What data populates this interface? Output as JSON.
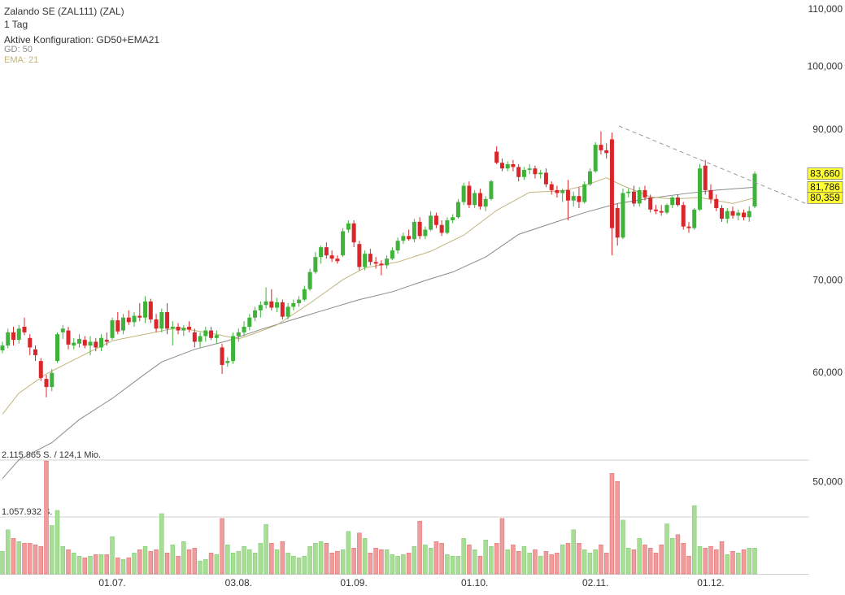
{
  "chart_data": {
    "type": "candlestick",
    "title": "Zalando SE (ZAL111) (ZAL)",
    "subtitle": "1 Tag",
    "config": "Aktive Konfiguration: GD50+EMA21",
    "categories": [
      null,
      null,
      null,
      null,
      null,
      null,
      null,
      null,
      null,
      null,
      null,
      null,
      null,
      null,
      null,
      null,
      null,
      null,
      null,
      null,
      "01.07.",
      null,
      null,
      null,
      null,
      null,
      null,
      null,
      null,
      null,
      null,
      null,
      null,
      null,
      null,
      null,
      null,
      null,
      null,
      null,
      null,
      null,
      null,
      "03.08.",
      null,
      null,
      null,
      null,
      null,
      null,
      null,
      null,
      null,
      null,
      null,
      null,
      null,
      null,
      null,
      null,
      null,
      null,
      null,
      null,
      "01.09.",
      null,
      null,
      null,
      null,
      null,
      null,
      null,
      null,
      null,
      null,
      null,
      null,
      null,
      null,
      null,
      null,
      null,
      null,
      null,
      null,
      null,
      "01.10.",
      null,
      null,
      null,
      null,
      null,
      null,
      null,
      null,
      null,
      null,
      null,
      null,
      null,
      null,
      null,
      null,
      null,
      null,
      null,
      null,
      null,
      "02.11.",
      null,
      null,
      null,
      null,
      null,
      null,
      null,
      null,
      null,
      null,
      null,
      null,
      null,
      null,
      null,
      null,
      null,
      null,
      null,
      null,
      "01.12.",
      null,
      null,
      null,
      null,
      null,
      null,
      null,
      null
    ],
    "open": [
      62.3,
      62.8,
      64.2,
      63.4,
      64.8,
      63.6,
      62.4,
      61.2,
      59.4,
      58.6,
      61.2,
      64.2,
      64.4,
      62.8,
      63.0,
      63.4,
      62.8,
      63.2,
      62.6,
      63.4,
      63.6,
      65.5,
      64.4,
      65.8,
      65.3,
      66.0,
      65.8,
      67.6,
      65.6,
      64.6,
      66.4,
      64.6,
      64.8,
      64.4,
      64.8,
      64.2,
      63.2,
      63.8,
      64.4,
      63.6,
      62.6,
      61.0,
      61.2,
      63.8,
      64.2,
      64.8,
      65.8,
      66.6,
      67.2,
      67.6,
      66.9,
      67.5,
      65.9,
      67.0,
      67.4,
      67.8,
      69.0,
      71.0,
      72.8,
      74.0,
      73.0,
      72.6,
      73.0,
      76.2,
      77.0,
      74.4,
      71.6,
      73.2,
      72.2,
      72.0,
      71.8,
      72.6,
      73.6,
      74.8,
      75.4,
      75.0,
      77.2,
      75.4,
      76.2,
      78.0,
      76.8,
      75.8,
      77.4,
      77.8,
      79.8,
      82.0,
      79.4,
      81.0,
      79.2,
      80.2,
      86.8,
      85.2,
      84.4,
      85.0,
      84.6,
      83.2,
      84.2,
      84.4,
      83.6,
      83.8,
      82.2,
      81.4,
      81.0,
      81.4,
      80.0,
      80.6,
      79.8,
      82.2,
      84.0,
      87.8,
      87.0,
      88.6,
      79.0,
      75.2,
      81.0,
      81.2,
      79.6,
      81.4,
      80.4,
      78.8,
      78.6,
      78.4,
      79.4,
      80.4,
      79.4,
      76.6,
      76.4,
      78.8,
      84.8,
      81.4,
      80.2,
      79.0,
      77.6,
      78.6,
      78.0,
      78.4,
      77.8,
      79.2
    ],
    "high": [
      63.2,
      64.6,
      64.8,
      65.0,
      65.8,
      64.0,
      62.8,
      61.5,
      59.8,
      60.4,
      64.2,
      65.0,
      64.8,
      63.6,
      64.0,
      63.8,
      63.8,
      63.6,
      64.0,
      64.2,
      65.8,
      66.4,
      66.2,
      66.6,
      66.4,
      67.4,
      68.2,
      67.9,
      66.2,
      66.8,
      67.4,
      65.4,
      65.2,
      65.0,
      65.4,
      64.6,
      64.2,
      64.8,
      64.8,
      64.4,
      63.0,
      61.6,
      64.2,
      64.6,
      65.4,
      66.2,
      67.0,
      67.6,
      69.2,
      69.0,
      68.0,
      67.8,
      67.4,
      67.8,
      68.2,
      69.4,
      71.4,
      73.4,
      74.2,
      74.6,
      73.6,
      73.0,
      76.4,
      77.4,
      77.4,
      74.8,
      73.6,
      73.8,
      72.8,
      72.4,
      73.0,
      74.0,
      75.2,
      75.8,
      76.2,
      77.6,
      77.8,
      76.6,
      78.6,
      78.4,
      77.4,
      77.8,
      78.2,
      80.2,
      82.4,
      82.6,
      81.4,
      81.6,
      80.6,
      82.8,
      87.6,
      85.8,
      85.4,
      85.6,
      85.0,
      84.6,
      85.0,
      84.8,
      84.2,
      84.4,
      82.6,
      82.0,
      81.6,
      82.8,
      81.2,
      81.8,
      82.6,
      84.4,
      88.2,
      89.8,
      88.0,
      89.6,
      79.6,
      81.6,
      81.6,
      82.0,
      81.8,
      82.0,
      80.8,
      79.4,
      79.4,
      79.6,
      80.6,
      80.8,
      79.8,
      77.2,
      79.0,
      85.0,
      85.6,
      82.2,
      80.8,
      79.4,
      79.0,
      79.2,
      78.8,
      78.8,
      79.2,
      84.0
    ],
    "low": [
      62.0,
      62.5,
      62.8,
      63.0,
      63.9,
      61.8,
      61.2,
      59.2,
      57.6,
      58.2,
      61.0,
      63.5,
      62.4,
      62.4,
      62.6,
      62.5,
      61.8,
      62.2,
      62.2,
      62.8,
      63.4,
      64.0,
      64.0,
      65.0,
      64.8,
      65.4,
      65.2,
      65.2,
      64.2,
      64.2,
      64.0,
      62.8,
      64.0,
      63.8,
      64.2,
      62.6,
      62.6,
      63.2,
      63.4,
      63.0,
      59.9,
      60.6,
      60.9,
      63.2,
      63.8,
      64.4,
      65.4,
      65.8,
      66.8,
      66.6,
      66.4,
      65.6,
      65.6,
      66.6,
      67.0,
      67.6,
      68.8,
      70.8,
      72.0,
      72.6,
      72.2,
      72.0,
      72.8,
      75.8,
      74.0,
      71.2,
      71.2,
      71.8,
      71.4,
      70.6,
      71.4,
      72.4,
      73.2,
      74.4,
      74.8,
      74.6,
      75.0,
      75.0,
      76.0,
      76.4,
      75.4,
      75.6,
      77.0,
      77.6,
      79.4,
      79.0,
      79.0,
      78.8,
      78.6,
      80.0,
      85.0,
      84.0,
      84.0,
      84.0,
      82.6,
      82.8,
      83.6,
      83.0,
      83.0,
      81.8,
      80.8,
      80.4,
      79.8,
      77.4,
      79.2,
      79.0,
      79.6,
      82.0,
      83.8,
      86.4,
      85.8,
      73.0,
      74.2,
      75.0,
      80.4,
      79.2,
      79.2,
      80.0,
      78.4,
      78.2,
      78.0,
      78.2,
      79.0,
      79.2,
      76.2,
      75.8,
      76.2,
      78.6,
      80.8,
      79.6,
      78.6,
      77.2,
      77.0,
      77.6,
      77.4,
      77.4,
      77.2,
      79.0
    ],
    "close": [
      62.8,
      64.2,
      63.4,
      64.6,
      64.2,
      62.6,
      61.8,
      59.5,
      58.6,
      60.0,
      64.0,
      64.6,
      62.9,
      63.1,
      63.5,
      62.8,
      63.2,
      62.6,
      63.6,
      63.2,
      65.5,
      64.3,
      65.8,
      65.3,
      66.0,
      65.8,
      67.6,
      65.6,
      64.6,
      66.4,
      64.6,
      64.8,
      64.4,
      64.7,
      64.5,
      63.2,
      63.8,
      64.4,
      63.6,
      63.9,
      60.8,
      61.2,
      63.8,
      64.2,
      64.8,
      65.8,
      66.6,
      67.2,
      67.6,
      66.9,
      67.5,
      65.9,
      67.0,
      67.4,
      67.8,
      69.0,
      71.0,
      72.8,
      74.0,
      73.0,
      72.6,
      72.3,
      76.0,
      77.0,
      74.6,
      71.6,
      73.2,
      72.2,
      72.0,
      71.8,
      72.6,
      73.6,
      74.8,
      75.4,
      75.0,
      77.2,
      75.4,
      76.2,
      78.0,
      76.8,
      75.8,
      77.4,
      77.8,
      79.8,
      82.0,
      79.4,
      81.0,
      79.2,
      80.2,
      82.6,
      85.2,
      84.4,
      85.0,
      84.6,
      83.2,
      84.2,
      84.4,
      83.6,
      83.8,
      82.2,
      81.4,
      81.0,
      81.4,
      80.0,
      80.6,
      79.8,
      82.2,
      84.0,
      87.8,
      87.0,
      86.6,
      76.4,
      75.2,
      81.0,
      81.2,
      79.6,
      81.4,
      80.4,
      78.8,
      78.6,
      78.4,
      79.4,
      80.4,
      79.4,
      76.6,
      76.4,
      78.8,
      84.4,
      81.4,
      80.2,
      79.0,
      77.6,
      78.6,
      78.0,
      78.4,
      77.8,
      78.6,
      83.66
    ],
    "last_label": "83,660",
    "up_color": "#3fb23a",
    "down_color": "#d8262a",
    "volume": [
      420000,
      820000,
      660000,
      600000,
      570000,
      570000,
      540000,
      510000,
      2100000,
      900000,
      1180000,
      510000,
      450000,
      390000,
      330000,
      300000,
      330000,
      360000,
      360000,
      360000,
      690000,
      300000,
      270000,
      300000,
      390000,
      450000,
      510000,
      420000,
      450000,
      1120000,
      390000,
      540000,
      330000,
      600000,
      450000,
      480000,
      240000,
      270000,
      390000,
      360000,
      1030000,
      540000,
      390000,
      420000,
      510000,
      450000,
      390000,
      570000,
      920000,
      570000,
      450000,
      600000,
      390000,
      330000,
      300000,
      330000,
      510000,
      570000,
      600000,
      570000,
      390000,
      420000,
      450000,
      790000,
      480000,
      760000,
      660000,
      390000,
      480000,
      450000,
      450000,
      360000,
      330000,
      360000,
      390000,
      510000,
      980000,
      540000,
      480000,
      600000,
      570000,
      360000,
      330000,
      330000,
      660000,
      540000,
      450000,
      330000,
      630000,
      510000,
      570000,
      1030000,
      450000,
      540000,
      420000,
      510000,
      390000,
      450000,
      330000,
      420000,
      360000,
      390000,
      540000,
      570000,
      820000,
      570000,
      450000,
      390000,
      450000,
      540000,
      390000,
      1870000,
      1720000,
      1000000,
      480000,
      450000,
      660000,
      540000,
      480000,
      390000,
      540000,
      930000,
      660000,
      730000,
      570000,
      330000,
      1270000,
      510000,
      480000,
      510000,
      450000,
      600000,
      360000,
      420000,
      390000,
      450000,
      480000,
      480000
    ],
    "volume_up_color": "#a9dd95",
    "volume_down_color": "#ef9c9c",
    "volume_lim": [
      0,
      2115865
    ],
    "volume_ticks": [
      {
        "value": 2115865,
        "label": "2.115.865 S. / 124,1 Mio."
      },
      {
        "value": 1057932,
        "label": "1.057.932 S."
      }
    ],
    "log_scale": true,
    "ylim": [
      42.9,
      111.8
    ],
    "yticks": [
      {
        "value": 50,
        "label": "50,000"
      },
      {
        "value": 60,
        "label": "60,000"
      },
      {
        "value": 70,
        "label": "70,000"
      },
      {
        "value": 90,
        "label": "90,000"
      },
      {
        "value": 100,
        "label": "100,000"
      },
      {
        "value": 110,
        "label": "110,000"
      }
    ],
    "series": [
      {
        "name": "GD: 50",
        "color": "#8a8a8a",
        "x": [
          0,
          3,
          9,
          14,
          20,
          26,
          29,
          35,
          41,
          47,
          53,
          59,
          65,
          71,
          77,
          82,
          88,
          94,
          100,
          106,
          112,
          118,
          124,
          130,
          137
        ],
        "values": [
          50.3,
          51.9,
          53.4,
          55.5,
          57.5,
          59.9,
          61.1,
          62.4,
          63.3,
          64.5,
          65.6,
          66.7,
          67.8,
          68.7,
          70.0,
          71.0,
          72.8,
          75.6,
          77.0,
          78.4,
          79.6,
          80.3,
          80.9,
          81.4,
          81.786
        ],
        "last_label": "81,786"
      },
      {
        "name": "EMA: 21",
        "color": "#c2b37a",
        "x": [
          0,
          3,
          8,
          14,
          20,
          26,
          32,
          38,
          43,
          46,
          50,
          56,
          62,
          66,
          72,
          78,
          84,
          90,
          96,
          102,
          106,
          110,
          113,
          118,
          122,
          127,
          133,
          137
        ],
        "values": [
          56.0,
          58.0,
          59.9,
          61.6,
          63.3,
          64.0,
          64.7,
          64.1,
          63.5,
          64.1,
          65.0,
          67.4,
          70.1,
          71.5,
          72.2,
          73.5,
          75.5,
          78.7,
          81.1,
          81.3,
          82.0,
          83.1,
          82.0,
          80.5,
          80.2,
          80.4,
          79.6,
          80.359
        ],
        "last_label": "80,359"
      }
    ]
  }
}
